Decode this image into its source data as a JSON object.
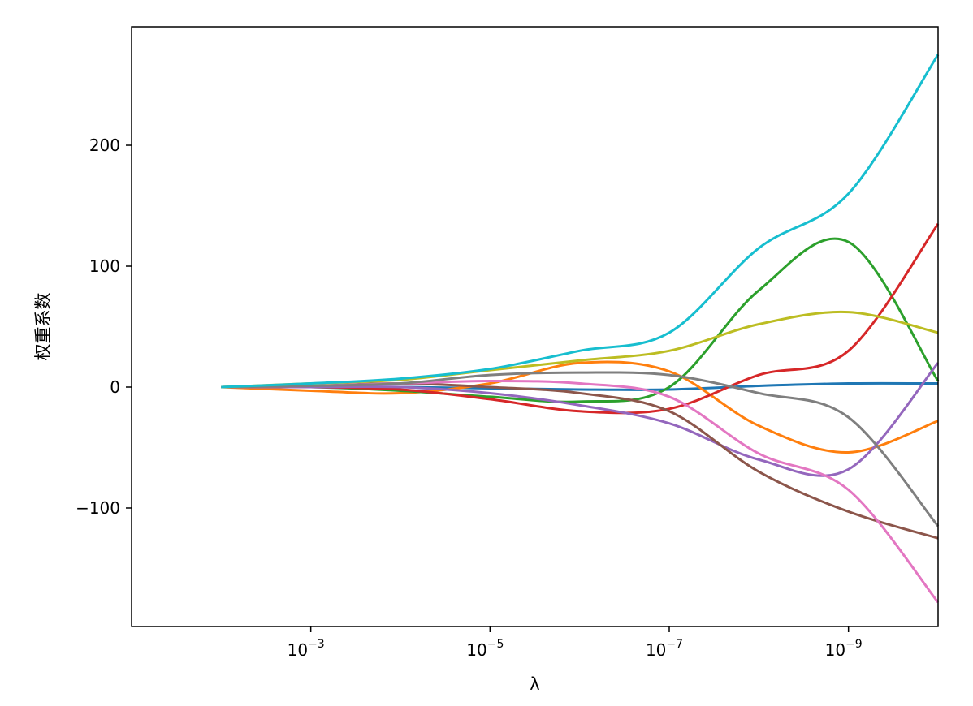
{
  "chart_data": {
    "type": "line",
    "title": "",
    "xlabel": "λ",
    "ylabel": "权重系数",
    "x_scale": "log",
    "x_inverted": true,
    "xlim": [
      0.1,
      1e-10
    ],
    "ylim": [
      -198,
      298
    ],
    "grid": false,
    "legend": "none",
    "x_ticks": [
      {
        "value": 0.001,
        "base": "10",
        "exp": "−3"
      },
      {
        "value": 1e-05,
        "base": "10",
        "exp": "−5"
      },
      {
        "value": 1e-07,
        "base": "10",
        "exp": "−7"
      },
      {
        "value": 1e-09,
        "base": "10",
        "exp": "−9"
      }
    ],
    "y_ticks": [
      {
        "value": -100,
        "label": "−100"
      },
      {
        "value": 0,
        "label": "0"
      },
      {
        "value": 100,
        "label": "100"
      },
      {
        "value": 200,
        "label": "200"
      }
    ],
    "x": [
      0.01,
      0.001,
      0.0001,
      1e-05,
      1e-06,
      1e-07,
      1e-08,
      1e-09,
      1e-10
    ],
    "series": [
      {
        "color": "#1f77b4",
        "values": [
          0,
          0.5,
          0,
          -1,
          -2,
          -2,
          1,
          3,
          3
        ]
      },
      {
        "color": "#ff7f0e",
        "values": [
          0,
          -3,
          -5,
          3,
          20,
          13,
          -32,
          -54,
          -28
        ]
      },
      {
        "color": "#2ca02c",
        "values": [
          0,
          0,
          -3,
          -8,
          -12,
          0,
          80,
          120,
          5
        ]
      },
      {
        "color": "#d62728",
        "values": [
          0,
          0,
          -2,
          -10,
          -20,
          -18,
          10,
          30,
          135
        ]
      },
      {
        "color": "#9467bd",
        "values": [
          0,
          0,
          0,
          -5,
          -15,
          -30,
          -60,
          -68,
          20
        ]
      },
      {
        "color": "#8c564b",
        "values": [
          0,
          1,
          3,
          0,
          -5,
          -20,
          -70,
          -103,
          -125
        ]
      },
      {
        "color": "#e377c2",
        "values": [
          0,
          1,
          3,
          5,
          3,
          -8,
          -55,
          -85,
          -178
        ]
      },
      {
        "color": "#7f7f7f",
        "values": [
          0,
          1,
          3,
          10,
          12,
          10,
          -5,
          -25,
          -115
        ]
      },
      {
        "color": "#bcbd22",
        "values": [
          0,
          3,
          6,
          14,
          22,
          30,
          52,
          62,
          45
        ]
      },
      {
        "color": "#17becf",
        "values": [
          0,
          3,
          7,
          15,
          30,
          45,
          115,
          160,
          275
        ]
      }
    ]
  }
}
